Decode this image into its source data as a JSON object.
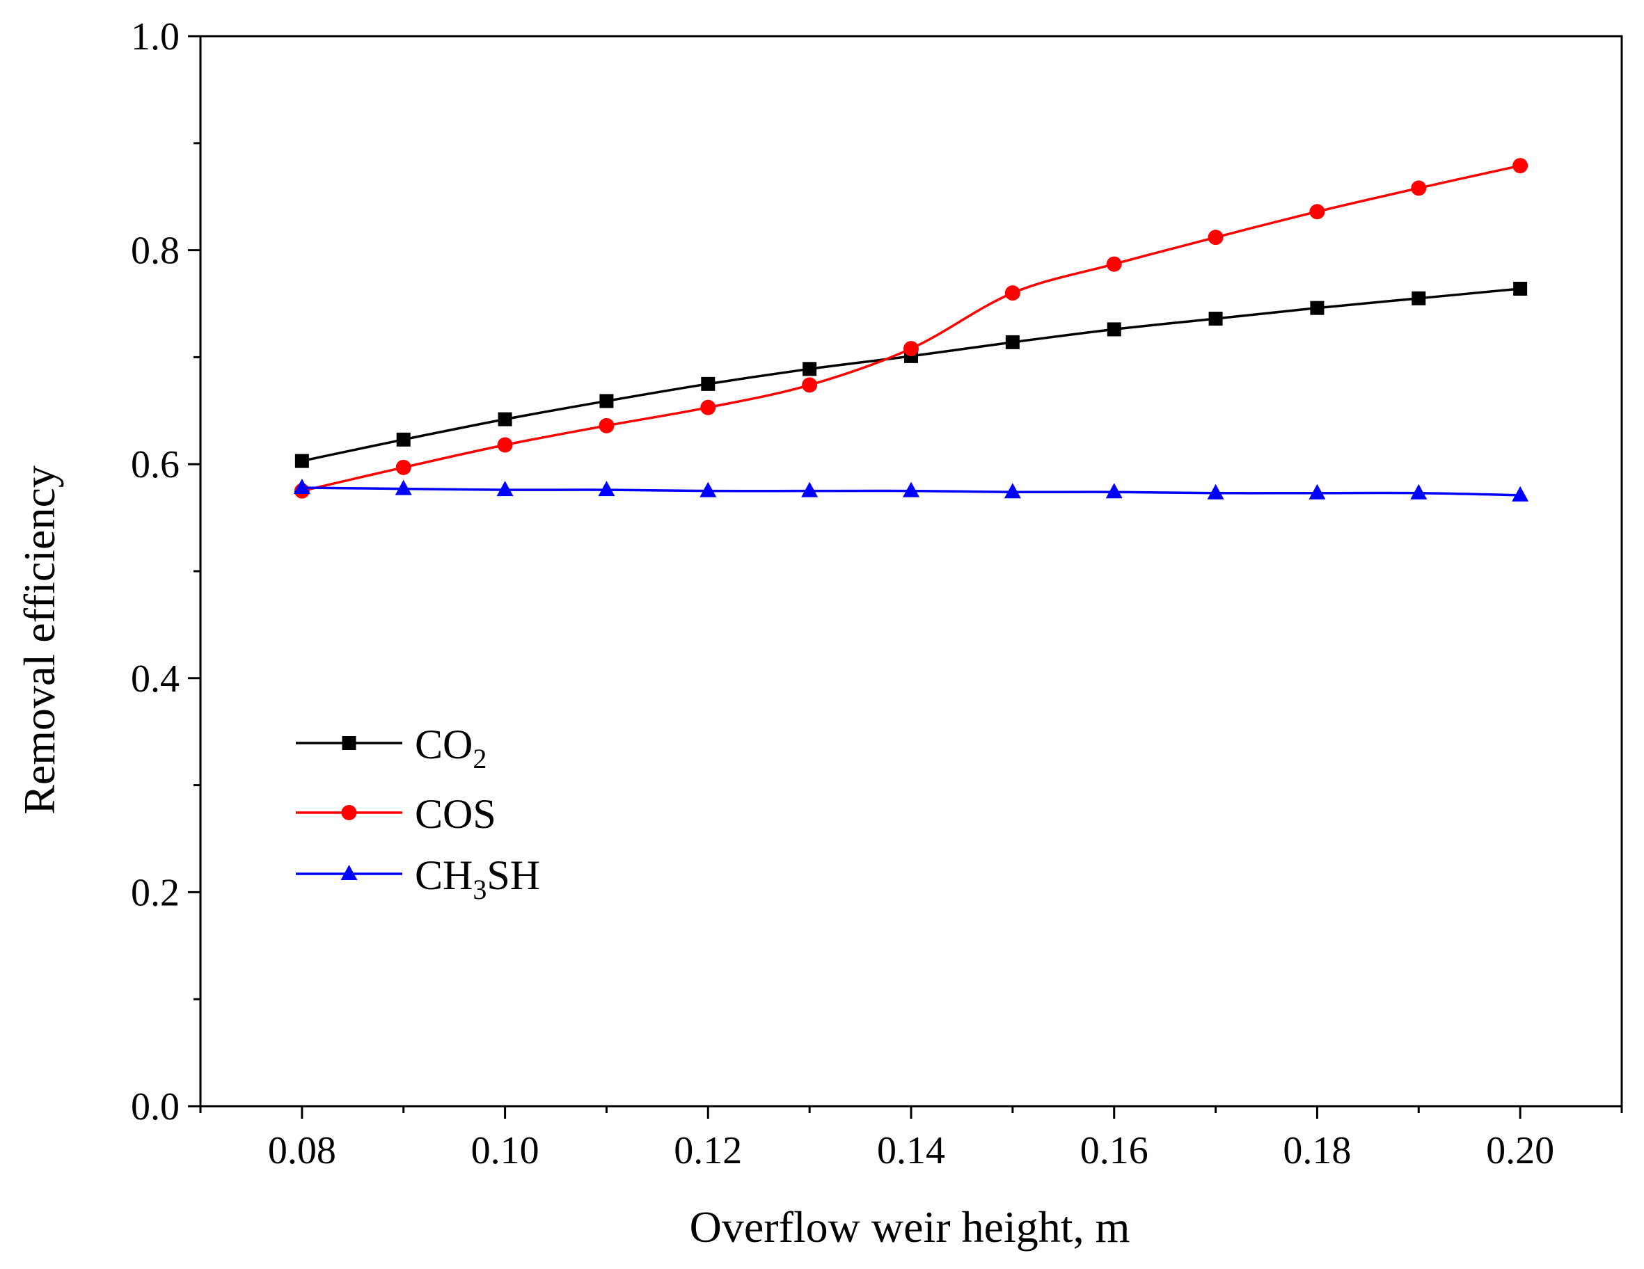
{
  "chart_data": {
    "type": "line",
    "title": "",
    "xlabel": "Overflow weir height, m",
    "ylabel": "Removal efficiency",
    "xlim": [
      0.07,
      0.21
    ],
    "ylim": [
      0.0,
      1.0
    ],
    "x_ticks": [
      0.08,
      0.1,
      0.12,
      0.14,
      0.16,
      0.18,
      0.2
    ],
    "x_tick_labels": [
      "0.08",
      "0.10",
      "0.12",
      "0.14",
      "0.16",
      "0.18",
      "0.20"
    ],
    "y_ticks": [
      0.0,
      0.2,
      0.4,
      0.6,
      0.8,
      1.0
    ],
    "y_tick_labels": [
      "0.0",
      "0.2",
      "0.4",
      "0.6",
      "0.8",
      "1.0"
    ],
    "grid": false,
    "legend_position": "lower-left",
    "x": [
      0.08,
      0.09,
      0.1,
      0.11,
      0.12,
      0.13,
      0.14,
      0.15,
      0.16,
      0.17,
      0.18,
      0.19,
      0.2
    ],
    "series": [
      {
        "name": "CO2",
        "label_main": "CO",
        "label_sub": "2",
        "label_tail": "",
        "color": "#000000",
        "marker": "square",
        "values": [
          0.603,
          0.623,
          0.642,
          0.659,
          0.675,
          0.689,
          0.701,
          0.714,
          0.726,
          0.736,
          0.746,
          0.755,
          0.764
        ]
      },
      {
        "name": "COS",
        "label_main": "COS",
        "label_sub": "",
        "label_tail": "",
        "color": "#ff0000",
        "marker": "circle",
        "values": [
          0.575,
          0.597,
          0.618,
          0.636,
          0.653,
          0.674,
          0.708,
          0.76,
          0.787,
          0.812,
          0.836,
          0.858,
          0.879
        ]
      },
      {
        "name": "CH3SH",
        "label_main": "CH",
        "label_sub": "3",
        "label_tail": "SH",
        "color": "#0000ff",
        "marker": "triangle",
        "values": [
          0.578,
          0.577,
          0.576,
          0.576,
          0.575,
          0.575,
          0.575,
          0.574,
          0.574,
          0.573,
          0.573,
          0.573,
          0.571
        ]
      }
    ]
  }
}
